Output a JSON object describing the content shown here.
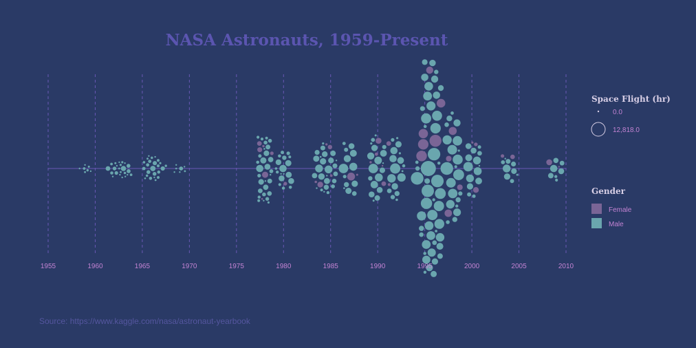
{
  "colors": {
    "background": "#2a3a66",
    "title": "#5b55b0",
    "tick": "#c383d3",
    "legend_title": "#d8cfe6",
    "legend_label": "#c383d3",
    "grid": "#6a58b5",
    "axis": "#6a58b5",
    "source": "#55569f",
    "female": "#7a6596",
    "male": "#6aa6ae"
  },
  "chart_data": {
    "type": "scatter",
    "title": "NASA Astronauts, 1959-Present",
    "xlabel": "",
    "ylabel": "",
    "xlim": [
      1955,
      2010
    ],
    "x_ticks": [
      "1955",
      "1960",
      "1965",
      "1970",
      "1975",
      "1980",
      "1985",
      "1990",
      "1995",
      "2000",
      "2005",
      "2010"
    ],
    "grid": true,
    "legend_position": "right",
    "size_legend": {
      "title": "Space Flight (hr)",
      "min_label": "0.0",
      "max_label": "12,818.0",
      "min": 0,
      "max": 12818
    },
    "color_legend": {
      "title": "Gender",
      "items": [
        {
          "label": "Female",
          "color": "#7a6596"
        },
        {
          "label": "Male",
          "color": "#6aa6ae"
        }
      ]
    },
    "source": "Source: https://www.kaggle.com/nasa/astronaut-yearbook",
    "groups": [
      {
        "year": 1959,
        "male": 7,
        "female": 0,
        "max_hours": 400
      },
      {
        "year": 1962,
        "male": 9,
        "female": 0,
        "max_hours": 1200
      },
      {
        "year": 1963,
        "male": 14,
        "female": 0,
        "max_hours": 1500
      },
      {
        "year": 1966,
        "male": 19,
        "female": 0,
        "max_hours": 1600
      },
      {
        "year": 1967,
        "male": 5,
        "female": 0,
        "max_hours": 1000
      },
      {
        "year": 1969,
        "male": 7,
        "female": 0,
        "max_hours": 900
      },
      {
        "year": 1978,
        "male": 29,
        "female": 6,
        "max_hours": 3000
      },
      {
        "year": 1980,
        "male": 18,
        "female": 1,
        "max_hours": 3000
      },
      {
        "year": 1984,
        "male": 14,
        "female": 3,
        "max_hours": 3500
      },
      {
        "year": 1985,
        "male": 11,
        "female": 2,
        "max_hours": 3500
      },
      {
        "year": 1987,
        "male": 13,
        "female": 2,
        "max_hours": 5000
      },
      {
        "year": 1990,
        "male": 18,
        "female": 5,
        "max_hours": 5000
      },
      {
        "year": 1992,
        "male": 17,
        "female": 2,
        "max_hours": 6000
      },
      {
        "year": 1995,
        "male": 16,
        "female": 3,
        "max_hours": 9000
      },
      {
        "year": 1996,
        "male": 32,
        "female": 3,
        "max_hours": 12818
      },
      {
        "year": 1998,
        "male": 21,
        "female": 4,
        "max_hours": 9000
      },
      {
        "year": 2000,
        "male": 14,
        "female": 3,
        "max_hours": 5000
      },
      {
        "year": 2004,
        "male": 9,
        "female": 2,
        "max_hours": 3500
      },
      {
        "year": 2009,
        "male": 7,
        "female": 2,
        "max_hours": 3000
      }
    ]
  }
}
